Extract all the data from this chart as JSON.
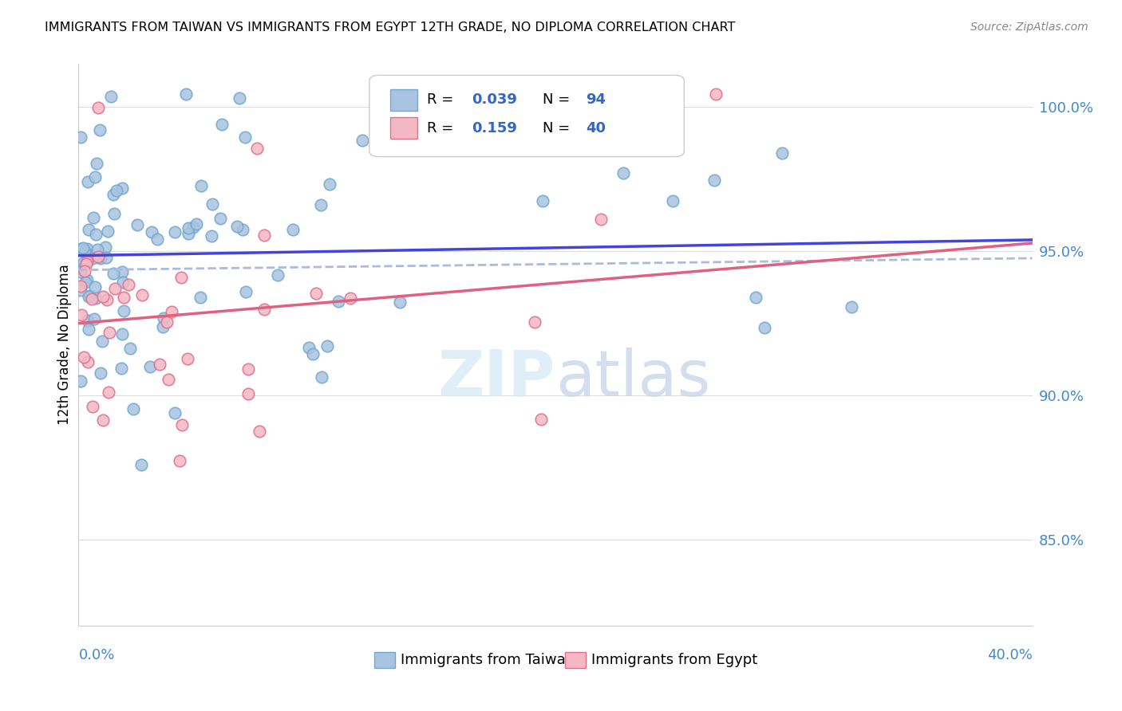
{
  "title": "IMMIGRANTS FROM TAIWAN VS IMMIGRANTS FROM EGYPT 12TH GRADE, NO DIPLOMA CORRELATION CHART",
  "source": "Source: ZipAtlas.com",
  "ylabel": "12th Grade, No Diploma",
  "x_range": [
    0.0,
    0.4
  ],
  "y_range": [
    82.0,
    101.5
  ],
  "taiwan_color": "#a8c4e0",
  "taiwan_edge": "#6fa8d0",
  "egypt_color": "#f4b8c4",
  "egypt_edge": "#e07090",
  "taiwan_line_color": "#4444dd",
  "egypt_line_color": "#e06080",
  "taiwan_dash_color": "#aabbdd",
  "R_taiwan": 0.039,
  "N_taiwan": 94,
  "R_egypt": 0.159,
  "N_egypt": 40,
  "yticks": [
    85.0,
    90.0,
    95.0,
    100.0
  ],
  "ytick_labels": [
    "85.0%",
    "90.0%",
    "95.0%",
    "100.0%"
  ]
}
